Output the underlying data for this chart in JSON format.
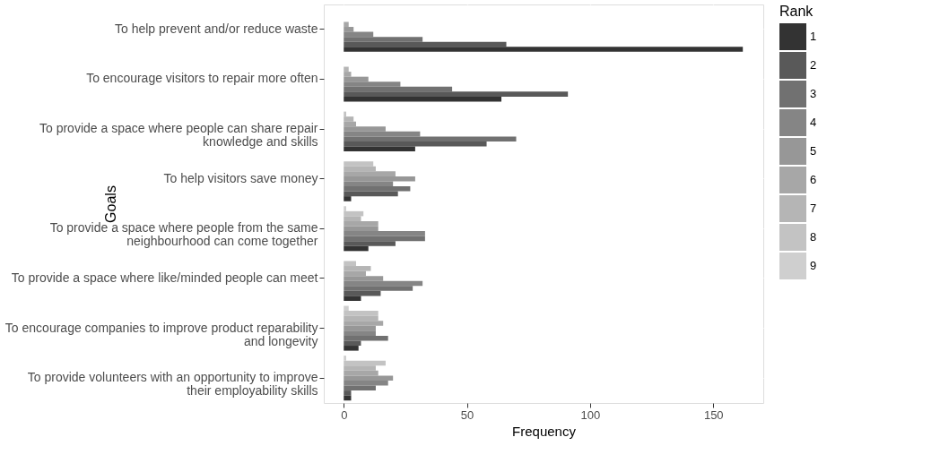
{
  "chart_data": {
    "type": "bar",
    "orientation": "horizontal",
    "xlabel": "Frequency",
    "ylabel": "Goals",
    "legend_title": "Rank",
    "categories": [
      "To help prevent and/or reduce waste",
      "To encourage visitors to repair more often",
      "To provide a space where people can share repair\nknowledge and skills",
      "To help visitors save money",
      "To provide a space where people from the same\nneighbourhood can come together",
      "To provide a space where like/minded people can meet",
      "To encourage companies to improve product reparability\nand longevity",
      "To provide volunteers with an opportunity to improve\ntheir employability skills"
    ],
    "series": [
      {
        "name": "9",
        "color": "#cfcfcf",
        "values": [
          null,
          null,
          null,
          null,
          1,
          null,
          2,
          1
        ]
      },
      {
        "name": "8",
        "color": "#c3c3c3",
        "values": [
          null,
          null,
          1,
          12,
          8,
          5,
          14,
          17
        ]
      },
      {
        "name": "7",
        "color": "#b5b5b5",
        "values": [
          null,
          2,
          4,
          13,
          7,
          11,
          14,
          13
        ]
      },
      {
        "name": "6",
        "color": "#a7a7a7",
        "values": [
          2,
          3,
          5,
          21,
          14,
          9,
          16,
          14
        ]
      },
      {
        "name": "5",
        "color": "#979797",
        "values": [
          4,
          10,
          17,
          29,
          14,
          16,
          13,
          20
        ]
      },
      {
        "name": "4",
        "color": "#858585",
        "values": [
          12,
          23,
          31,
          20,
          33,
          32,
          13,
          18
        ]
      },
      {
        "name": "3",
        "color": "#717171",
        "values": [
          32,
          44,
          70,
          27,
          33,
          28,
          18,
          13
        ]
      },
      {
        "name": "2",
        "color": "#595959",
        "values": [
          66,
          91,
          58,
          22,
          21,
          15,
          7,
          3
        ]
      },
      {
        "name": "1",
        "color": "#333333",
        "values": [
          162,
          64,
          29,
          3,
          10,
          7,
          6,
          3
        ]
      }
    ],
    "xlim": [
      -8.1,
      170.3
    ],
    "xticks": [
      0,
      50,
      100,
      150
    ],
    "grid": true,
    "legend": "right"
  }
}
